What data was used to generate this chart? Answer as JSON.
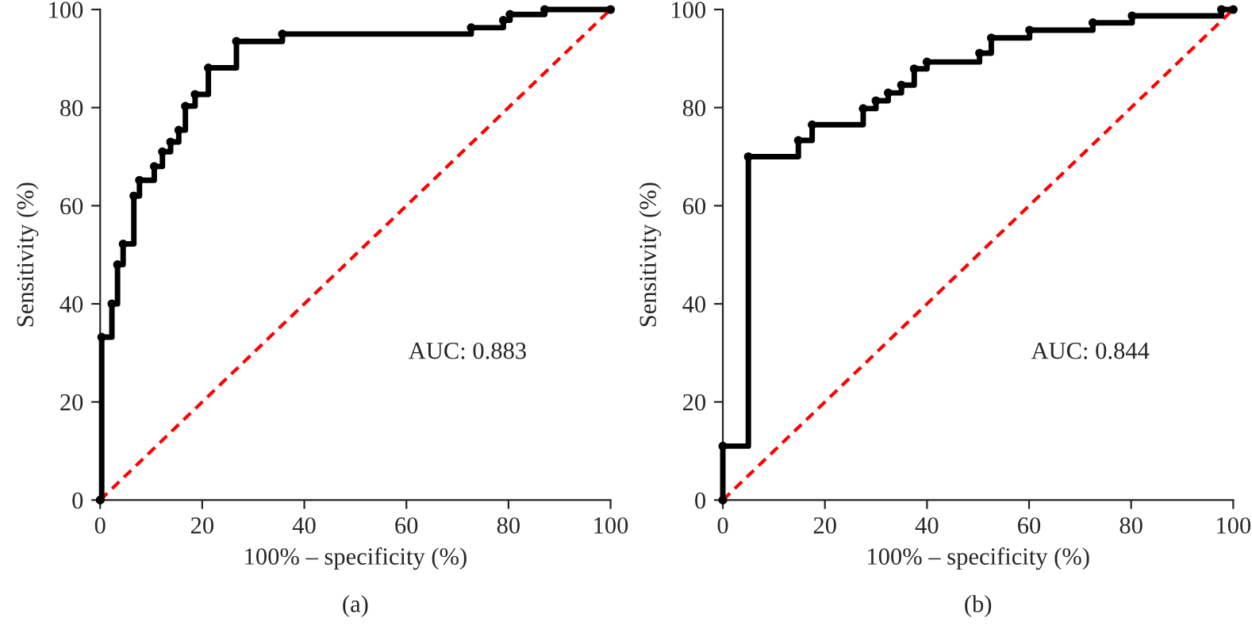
{
  "chart_data": [
    {
      "type": "step",
      "title": "(a)",
      "xlabel": "100% – specificity (%)",
      "ylabel": "Sensitivity (%)",
      "annotations": [
        "AUC: 0.883"
      ],
      "xlim": [
        0,
        100
      ],
      "ylim": [
        0,
        100
      ],
      "xticks": [
        0,
        20,
        40,
        60,
        80,
        100
      ],
      "yticks": [
        0,
        20,
        40,
        60,
        80,
        100
      ],
      "grid": false,
      "legend": false,
      "series": [
        {
          "color": "#000000",
          "marker": "circle",
          "line_style": "solid",
          "x": [
            0,
            0.3,
            2.3,
            3.4,
            4.5,
            6.6,
            7.7,
            10.6,
            12.2,
            13.8,
            15.4,
            16.7,
            18.6,
            21.2,
            26.7,
            35.7,
            72.7,
            79,
            80.3,
            87.1,
            100
          ],
          "values": [
            0,
            33.2,
            40,
            48,
            52.2,
            62,
            65.2,
            68,
            71,
            73,
            75.4,
            80.3,
            82.7,
            88.1,
            93.5,
            95,
            96.3,
            97.8,
            99,
            100,
            100
          ]
        },
        {
          "type": "line",
          "color": "#ff0000",
          "marker": "none",
          "line_style": "dashed",
          "x": [
            0,
            100
          ],
          "values": [
            0,
            100
          ]
        }
      ]
    },
    {
      "type": "step",
      "title": "(b)",
      "xlabel": "100% – specificity (%)",
      "ylabel": "Sensitivity (%)",
      "annotations": [
        "AUC: 0.844"
      ],
      "xlim": [
        0,
        100
      ],
      "ylim": [
        0,
        100
      ],
      "xticks": [
        0,
        20,
        40,
        60,
        80,
        100
      ],
      "yticks": [
        0,
        20,
        40,
        60,
        80,
        100
      ],
      "grid": false,
      "legend": false,
      "series": [
        {
          "color": "#000000",
          "marker": "circle",
          "line_style": "solid",
          "x": [
            0,
            0,
            5,
            14.8,
            17.5,
            27.5,
            30,
            32.4,
            35,
            37.5,
            40,
            50.3,
            52.6,
            60.1,
            72.5,
            80.2,
            97.7,
            100
          ],
          "values": [
            0,
            11,
            70,
            73.3,
            76.5,
            79.8,
            81.4,
            83,
            84.6,
            87.9,
            89.3,
            91.1,
            94.2,
            95.8,
            97.3,
            98.7,
            100,
            100
          ]
        },
        {
          "type": "line",
          "color": "#ff0000",
          "marker": "none",
          "line_style": "dashed",
          "x": [
            0,
            100
          ],
          "values": [
            0,
            100
          ]
        }
      ]
    }
  ]
}
